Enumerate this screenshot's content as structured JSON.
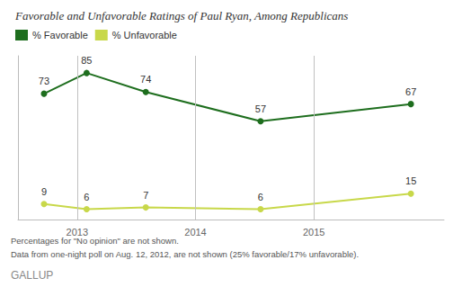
{
  "chart_data": {
    "type": "line",
    "title": "Favorable and Unfavorable Ratings of Paul Ryan, Among Republicans",
    "x": [
      2012.72,
      2013.08,
      2013.58,
      2014.55,
      2015.82
    ],
    "series": [
      {
        "name": "% Favorable",
        "color": "#1e6e1e",
        "values": [
          73,
          85,
          74,
          57,
          67
        ]
      },
      {
        "name": "% Unfavorable",
        "color": "#c8d84a",
        "values": [
          9,
          6,
          7,
          6,
          15
        ]
      }
    ],
    "xlim": [
      2012.5,
      2016.1
    ],
    "xticks": [
      2013,
      2014,
      2015
    ],
    "ylim": [
      0,
      95
    ],
    "tick_labels": "x",
    "grid": "x",
    "data_labels": true,
    "marker": "circle",
    "annotations": [
      "Percentages for \"No opinion\" are not shown.",
      "Data from one-night poll on Aug. 12, 2012, are not shown (25% favorable/17% unfavorable).",
      "GALLUP"
    ]
  }
}
